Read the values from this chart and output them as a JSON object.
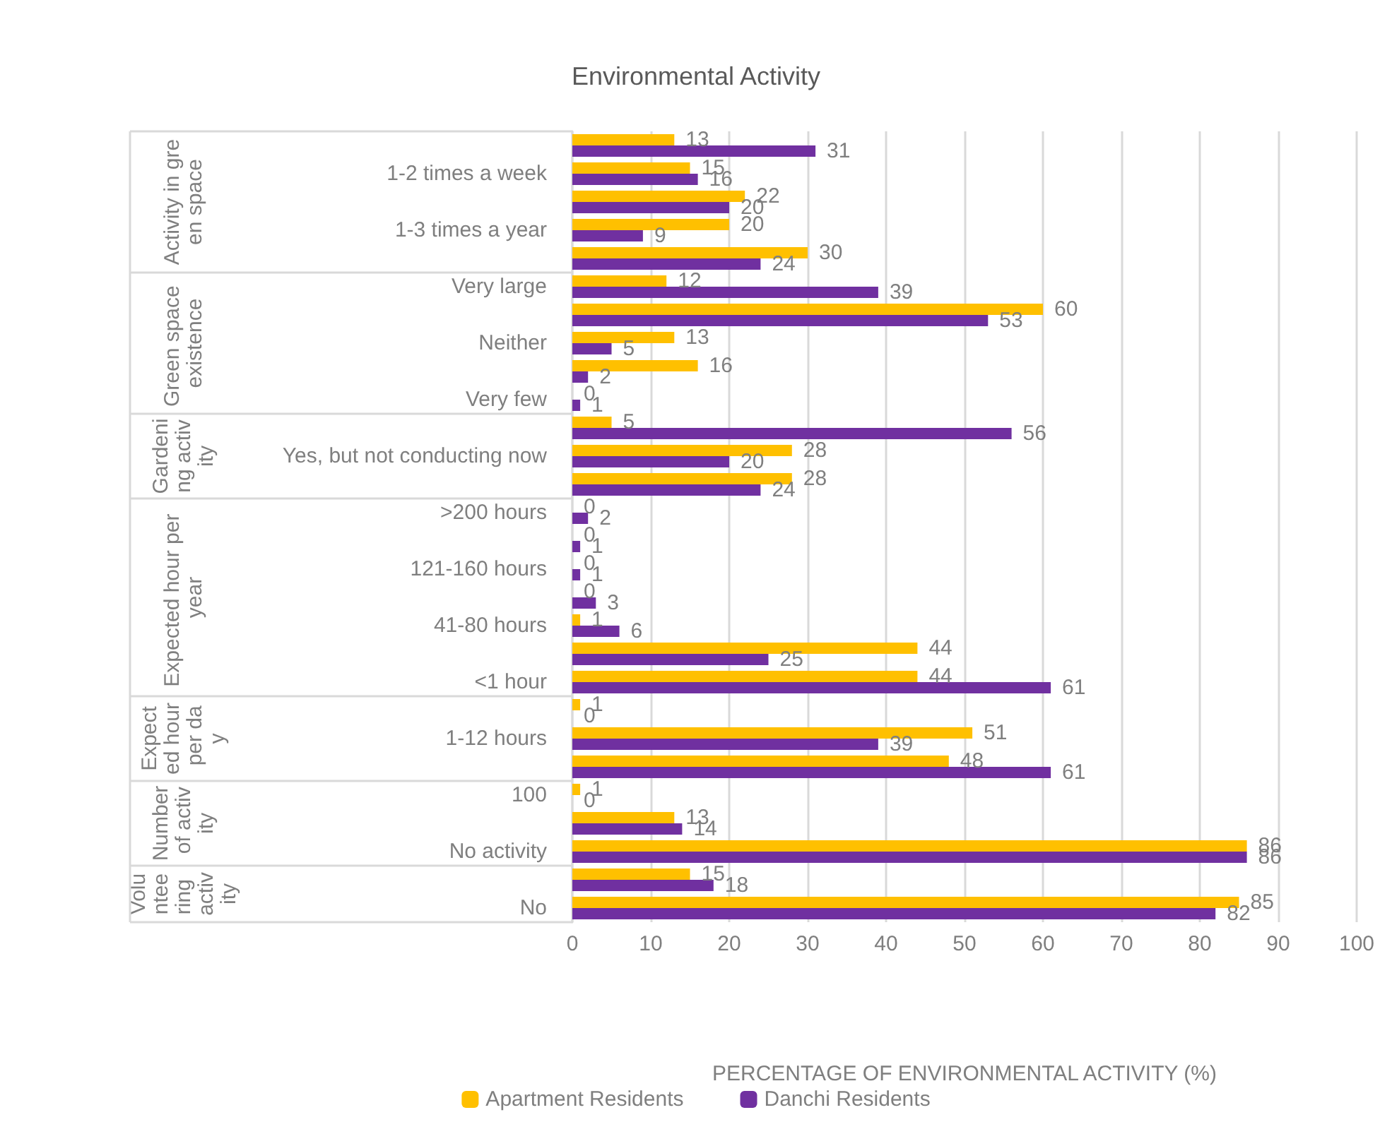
{
  "chart_data": {
    "type": "bar",
    "orientation": "horizontal",
    "title": "Environmental Activity",
    "xlabel": "PERCENTAGE OF ENVIRONMENTAL ACTIVITY (%)",
    "categories": [
      null,
      "1-2 times a week",
      null,
      "1-3 times a year",
      null,
      "Very large",
      null,
      "Neither",
      null,
      "Very few",
      null,
      "Yes, but not conducting now",
      null,
      ">200 hours",
      null,
      "121-160 hours",
      null,
      "41-80 hours",
      null,
      "<1 hour",
      null,
      "1-12 hours",
      null,
      "100",
      null,
      "No activity",
      null,
      "No"
    ],
    "series": [
      {
        "name": "Apartment Residents",
        "color": "#ffc000",
        "values": [
          13,
          15,
          22,
          20,
          30,
          12,
          60,
          13,
          16,
          0,
          5,
          28,
          28,
          0,
          0,
          0,
          0,
          1,
          44,
          44,
          1,
          51,
          48,
          1,
          13,
          86,
          15,
          85
        ]
      },
      {
        "name": "Danchi Residents",
        "color": "#7030a0",
        "values": [
          31,
          16,
          20,
          9,
          24,
          39,
          53,
          5,
          2,
          1,
          56,
          20,
          24,
          2,
          1,
          1,
          3,
          6,
          25,
          61,
          0,
          39,
          61,
          0,
          14,
          86,
          18,
          82
        ]
      }
    ],
    "annotations": [
      "Activity in green space",
      "Green space existence",
      "Gardening activity",
      "Expected hour per year",
      "Expected hour per day",
      "Number of activity",
      "Volunteering activity"
    ],
    "xlim": [
      0,
      100
    ],
    "xticks": [
      0,
      10,
      20,
      30,
      40,
      50,
      60,
      70,
      80,
      90,
      100
    ],
    "grid": "x",
    "data_labels": true,
    "legend": "bottom"
  }
}
